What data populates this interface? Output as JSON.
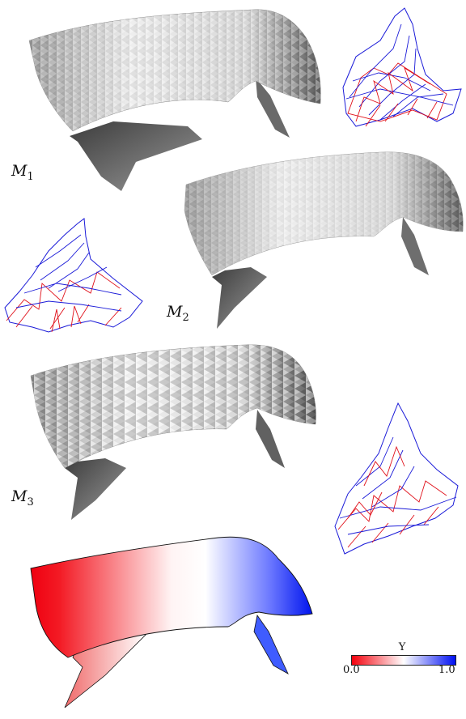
{
  "meshes": [
    {
      "id": "M",
      "sub": "1"
    },
    {
      "id": "M",
      "sub": "2"
    },
    {
      "id": "M",
      "sub": "3"
    }
  ],
  "colorbar": {
    "symbol": "Υ",
    "min_label": "0.0",
    "max_label": "1.0",
    "min_color": "#f4000c",
    "mid_color": "#ffffff",
    "max_color": "#0010f2"
  },
  "colors": {
    "surface_light": "#f2f2f2",
    "surface_dark": "#4a4a4a",
    "wire_red": "#e0101a",
    "wire_blue": "#1a1ad8"
  }
}
